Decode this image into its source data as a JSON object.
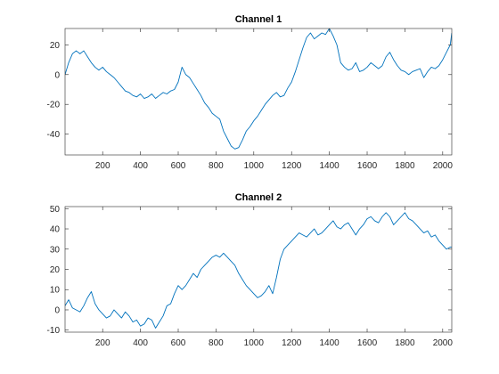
{
  "chart_data": [
    {
      "type": "line",
      "title": "Channel 1",
      "xlabel": "",
      "ylabel": "",
      "xlim": [
        1,
        2048
      ],
      "ylim": [
        -54,
        31
      ],
      "xticks": [
        200,
        400,
        600,
        800,
        1000,
        1200,
        1400,
        1600,
        1800,
        2000
      ],
      "yticks": [
        20,
        0,
        -20,
        -40
      ],
      "grid": false,
      "color": "#0072BD",
      "series": [
        {
          "x": [
            1,
            20,
            40,
            60,
            80,
            100,
            120,
            140,
            160,
            180,
            200,
            220,
            240,
            260,
            280,
            300,
            320,
            340,
            360,
            380,
            400,
            420,
            440,
            460,
            480,
            500,
            520,
            540,
            560,
            580,
            600,
            620,
            640,
            660,
            680,
            700,
            720,
            740,
            760,
            780,
            800,
            820,
            840,
            860,
            880,
            900,
            920,
            940,
            960,
            980,
            1000,
            1020,
            1040,
            1060,
            1080,
            1100,
            1120,
            1140,
            1160,
            1180,
            1200,
            1220,
            1240,
            1260,
            1280,
            1300,
            1320,
            1340,
            1360,
            1380,
            1400,
            1420,
            1440,
            1460,
            1480,
            1500,
            1520,
            1540,
            1560,
            1580,
            1600,
            1620,
            1640,
            1660,
            1680,
            1700,
            1720,
            1740,
            1760,
            1780,
            1800,
            1820,
            1840,
            1860,
            1880,
            1900,
            1920,
            1940,
            1960,
            1980,
            2000,
            2020,
            2040,
            2048
          ],
          "values": [
            0,
            8,
            14,
            16,
            14,
            16,
            12,
            8,
            5,
            3,
            5,
            2,
            0,
            -2,
            -5,
            -8,
            -11,
            -12,
            -14,
            -15,
            -13,
            -16,
            -15,
            -13,
            -16,
            -14,
            -12,
            -13,
            -11,
            -10,
            -5,
            5,
            0,
            -2,
            -6,
            -10,
            -14,
            -19,
            -22,
            -26,
            -28,
            -30,
            -38,
            -43,
            -48,
            -50,
            -49,
            -44,
            -38,
            -35,
            -31,
            -28,
            -24,
            -20,
            -17,
            -14,
            -12,
            -15,
            -14,
            -9,
            -5,
            2,
            10,
            18,
            25,
            28,
            24,
            26,
            28,
            27,
            31,
            26,
            20,
            8,
            5,
            3,
            4,
            8,
            2,
            3,
            5,
            8,
            6,
            4,
            6,
            12,
            15,
            10,
            6,
            3,
            2,
            0,
            2,
            3,
            4,
            -2,
            2,
            5,
            4,
            6,
            10,
            15,
            20,
            28
          ]
        }
      ]
    },
    {
      "type": "line",
      "title": "Channel 2",
      "xlabel": "",
      "ylabel": "",
      "xlim": [
        1,
        2048
      ],
      "ylim": [
        -11,
        51
      ],
      "xticks": [
        200,
        400,
        600,
        800,
        1000,
        1200,
        1400,
        1600,
        1800,
        2000
      ],
      "yticks": [
        50,
        40,
        30,
        20,
        10,
        0,
        -10
      ],
      "grid": false,
      "color": "#0072BD",
      "series": [
        {
          "x": [
            1,
            20,
            40,
            60,
            80,
            100,
            120,
            140,
            160,
            180,
            200,
            220,
            240,
            260,
            280,
            300,
            320,
            340,
            360,
            380,
            400,
            420,
            440,
            460,
            480,
            500,
            520,
            540,
            560,
            580,
            600,
            620,
            640,
            660,
            680,
            700,
            720,
            740,
            760,
            780,
            800,
            820,
            840,
            860,
            880,
            900,
            920,
            940,
            960,
            980,
            1000,
            1020,
            1040,
            1060,
            1080,
            1100,
            1120,
            1140,
            1160,
            1180,
            1200,
            1220,
            1240,
            1260,
            1280,
            1300,
            1320,
            1340,
            1360,
            1380,
            1400,
            1420,
            1440,
            1460,
            1480,
            1500,
            1520,
            1540,
            1560,
            1580,
            1600,
            1620,
            1640,
            1660,
            1680,
            1700,
            1720,
            1740,
            1760,
            1780,
            1800,
            1820,
            1840,
            1860,
            1880,
            1900,
            1920,
            1940,
            1960,
            1980,
            2000,
            2020,
            2040,
            2048
          ],
          "values": [
            2,
            5,
            1,
            0,
            -1,
            2,
            6,
            9,
            3,
            0,
            -2,
            -4,
            -3,
            0,
            -2,
            -4,
            -1,
            -3,
            -6,
            -5,
            -8,
            -7,
            -4,
            -5,
            -9,
            -6,
            -3,
            2,
            3,
            8,
            12,
            10,
            12,
            15,
            18,
            16,
            20,
            22,
            24,
            26,
            27,
            26,
            28,
            26,
            24,
            22,
            18,
            15,
            12,
            10,
            8,
            6,
            7,
            9,
            12,
            8,
            16,
            25,
            30,
            32,
            34,
            36,
            38,
            37,
            36,
            38,
            40,
            37,
            38,
            40,
            42,
            44,
            41,
            40,
            42,
            43,
            40,
            37,
            40,
            42,
            45,
            46,
            44,
            43,
            46,
            48,
            46,
            42,
            44,
            46,
            48,
            45,
            44,
            42,
            40,
            38,
            39,
            36,
            37,
            34,
            32,
            30,
            31,
            31
          ]
        }
      ]
    }
  ]
}
